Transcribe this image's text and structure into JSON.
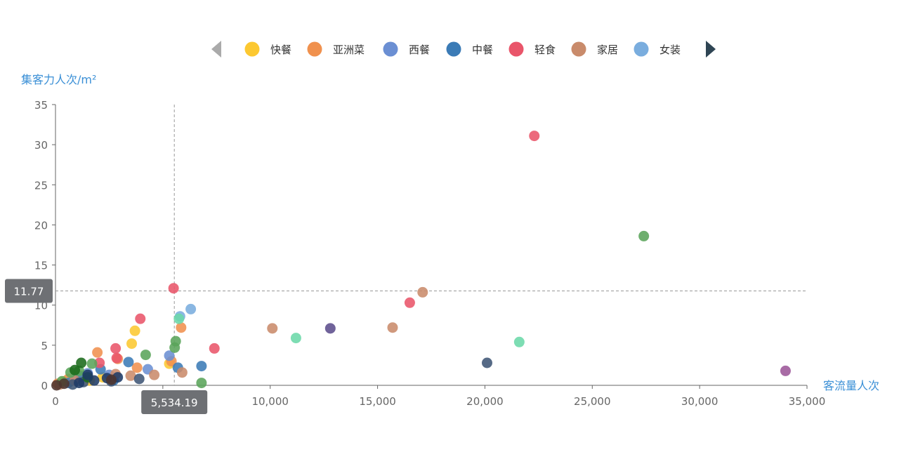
{
  "legend": {
    "items": [
      {
        "name": "快餐",
        "color": "#fcc831"
      },
      {
        "name": "亚洲菜",
        "color": "#f0914e"
      },
      {
        "name": "西餐",
        "color": "#6b8fd3"
      },
      {
        "name": "中餐",
        "color": "#3b7bb6"
      },
      {
        "name": "轻食",
        "color": "#e9556a"
      },
      {
        "name": "家居",
        "color": "#c98b6b"
      },
      {
        "name": "女装",
        "color": "#7aadde"
      }
    ]
  },
  "axis_pointer": {
    "x_label": "5,534.19",
    "y_label": "11.77",
    "x_value": 5534.19,
    "y_value": 11.77
  },
  "chart_data": {
    "type": "scatter",
    "xlabel": "客流量人次",
    "ylabel": "集客力人次/m²",
    "xlim": [
      0,
      35000
    ],
    "ylim": [
      0,
      35
    ],
    "x_ticks": [
      0,
      5000,
      10000,
      15000,
      20000,
      25000,
      30000,
      35000
    ],
    "y_ticks": [
      0,
      5,
      10,
      15,
      20,
      25,
      30,
      35
    ],
    "x_tick_labels": [
      "0",
      "5,000",
      "10,000",
      "15,000",
      "20,000",
      "25,000",
      "30,000",
      "35,000"
    ],
    "y_tick_labels": [
      "0",
      "5",
      "10",
      "15",
      "20",
      "25",
      "30",
      "35"
    ],
    "grid": false,
    "legend_position": "top-center",
    "series": [
      {
        "name": "快餐",
        "color": "#fcc831",
        "points": [
          [
            3700,
            6.8
          ],
          [
            3550,
            5.2
          ],
          [
            5300,
            2.7
          ],
          [
            1200,
            1.2
          ],
          [
            400,
            0.5
          ],
          [
            2200,
            1.0
          ],
          [
            1600,
            0.6
          ]
        ]
      },
      {
        "name": "亚洲菜",
        "color": "#f0914e",
        "points": [
          [
            1950,
            4.1
          ],
          [
            5850,
            7.2
          ],
          [
            3800,
            2.2
          ],
          [
            5400,
            3.0
          ],
          [
            2900,
            3.3
          ],
          [
            600,
            0.8
          ],
          [
            100,
            0.2
          ]
        ]
      },
      {
        "name": "西餐",
        "color": "#6b8fd3",
        "points": [
          [
            5300,
            3.7
          ],
          [
            4300,
            2.0
          ],
          [
            2500,
            1.3
          ],
          [
            900,
            0.7
          ],
          [
            1500,
            1.5
          ]
        ]
      },
      {
        "name": "中餐",
        "color": "#3b7bb6",
        "points": [
          [
            3400,
            2.9
          ],
          [
            6800,
            2.4
          ],
          [
            5700,
            2.2
          ],
          [
            2100,
            2.0
          ],
          [
            1200,
            1.1
          ],
          [
            2700,
            0.6
          ],
          [
            600,
            0.3
          ]
        ]
      },
      {
        "name": "轻食",
        "color": "#e9556a",
        "points": [
          [
            22300,
            31.1
          ],
          [
            5500,
            12.1
          ],
          [
            16500,
            10.3
          ],
          [
            3950,
            8.3
          ],
          [
            7400,
            4.6
          ],
          [
            2800,
            4.6
          ],
          [
            2850,
            3.4
          ],
          [
            2050,
            2.8
          ]
        ]
      },
      {
        "name": "家居",
        "color": "#c98b6b",
        "points": [
          [
            17100,
            11.6
          ],
          [
            10100,
            7.1
          ],
          [
            15700,
            7.2
          ],
          [
            5900,
            1.6
          ],
          [
            4600,
            1.3
          ],
          [
            3500,
            1.2
          ],
          [
            2800,
            1.4
          ],
          [
            900,
            0.6
          ],
          [
            200,
            0.1
          ]
        ]
      },
      {
        "name": "女装",
        "color": "#7aadde",
        "points": [
          [
            6300,
            9.5
          ],
          [
            5800,
            8.6
          ]
        ]
      },
      {
        "name": "",
        "color": "#5aa45a",
        "points": [
          [
            27400,
            18.6
          ],
          [
            5600,
            5.5
          ],
          [
            5550,
            4.7
          ],
          [
            4200,
            3.8
          ],
          [
            6800,
            0.3
          ],
          [
            1700,
            2.7
          ],
          [
            1100,
            1.8
          ],
          [
            700,
            1.6
          ],
          [
            300,
            0.5
          ]
        ]
      },
      {
        "name": "",
        "color": "#6bd8a8",
        "points": [
          [
            11200,
            5.9
          ],
          [
            21600,
            5.4
          ],
          [
            5750,
            8.3
          ]
        ]
      },
      {
        "name": "",
        "color": "#5c4d8c",
        "points": [
          [
            12800,
            7.1
          ]
        ]
      },
      {
        "name": "",
        "color": "#3f5575",
        "points": [
          [
            20100,
            2.8
          ],
          [
            3900,
            0.8
          ],
          [
            2600,
            0.5
          ],
          [
            1300,
            0.4
          ],
          [
            800,
            0.1
          ]
        ]
      },
      {
        "name": "",
        "color": "#9c5699",
        "points": [
          [
            34000,
            1.8
          ]
        ]
      },
      {
        "name": "",
        "color": "#1a6a1a",
        "points": [
          [
            1200,
            2.8
          ],
          [
            900,
            1.9
          ],
          [
            1500,
            1.0
          ]
        ]
      },
      {
        "name": "",
        "color": "#1e3a66",
        "points": [
          [
            1800,
            0.6
          ],
          [
            1500,
            1.3
          ],
          [
            2400,
            0.9
          ],
          [
            1100,
            0.3
          ],
          [
            2900,
            1.0
          ]
        ]
      },
      {
        "name": "",
        "color": "#4e342e",
        "points": [
          [
            2600,
            0.7
          ],
          [
            400,
            0.2
          ],
          [
            50,
            0.0
          ]
        ]
      }
    ]
  }
}
